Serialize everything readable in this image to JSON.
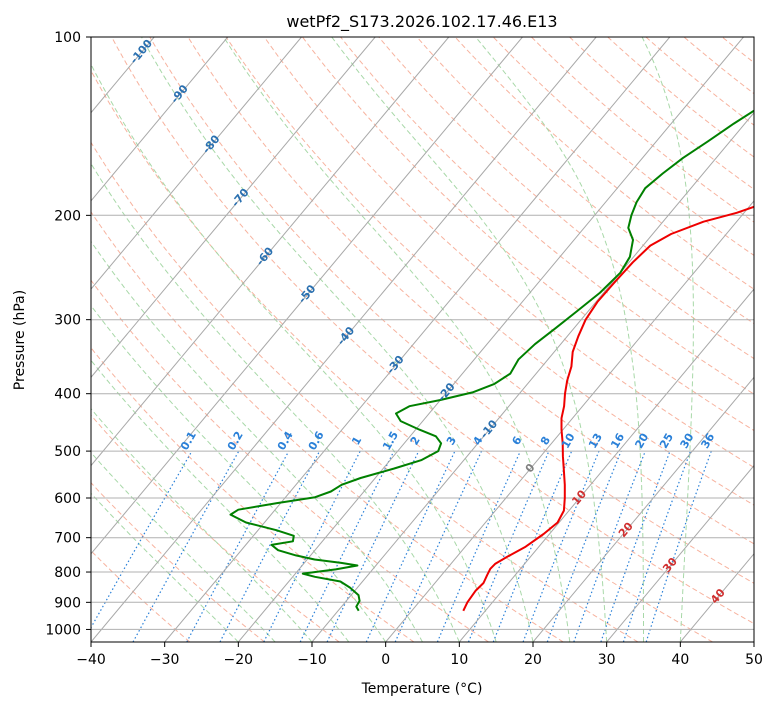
{
  "chart_data": {
    "type": "line",
    "title": "wetPf2_S173.2026.102.17.46.E13",
    "xlabel": "Temperature (°C)",
    "ylabel": "Pressure (hPa)",
    "xlim": [
      -40,
      50
    ],
    "ylim": [
      1050,
      100
    ],
    "y_scale": "log",
    "grid": true,
    "x_ticks": [
      -40,
      -30,
      -20,
      -10,
      0,
      10,
      20,
      30,
      40,
      50
    ],
    "y_ticks": [
      100,
      200,
      300,
      400,
      500,
      600,
      700,
      800,
      900,
      1000
    ],
    "skew_isotherm_labels": [
      "-100",
      "-90",
      "-80",
      "-70",
      "-60",
      "-50",
      "-40",
      "-30",
      "-20",
      "-10",
      "0",
      "10",
      "20",
      "30",
      "40"
    ],
    "mixing_ratio_labels": [
      "0.1",
      "0.2",
      "0.4",
      "0.6",
      "1",
      "1.5",
      "2",
      "3",
      "4",
      "6",
      "8",
      "10",
      "13",
      "16",
      "20",
      "25",
      "30",
      "36"
    ],
    "colors": {
      "temperature": "#ee0000",
      "dewpoint": "#008000",
      "isotherm": "#a8a8a8",
      "dry_adiabat": "#f7b39f",
      "moist_adiabat": "#a8d8a8",
      "mixing_ratio": "#2a80d8",
      "isotherm_label": "#2a70b0",
      "warm_isotherm_label": "#d03030",
      "zero_label": "#808080"
    },
    "series": [
      {
        "name": "",
        "role": "temperature",
        "points": [
          [
            7.0,
            930
          ],
          [
            6.6,
            900
          ],
          [
            6.4,
            860
          ],
          [
            6.6,
            835
          ],
          [
            6.2,
            810
          ],
          [
            5.9,
            790
          ],
          [
            6.0,
            775
          ],
          [
            6.8,
            755
          ],
          [
            8.2,
            725
          ],
          [
            9.2,
            690
          ],
          [
            9.8,
            660
          ],
          [
            9.3,
            630
          ],
          [
            8.0,
            600
          ],
          [
            6.5,
            570
          ],
          [
            4.8,
            540
          ],
          [
            3.0,
            510
          ],
          [
            1.5,
            485
          ],
          [
            -0.2,
            460
          ],
          [
            -1.5,
            440
          ],
          [
            -2.5,
            420
          ],
          [
            -3.8,
            400
          ],
          [
            -5.0,
            380
          ],
          [
            -6.0,
            360
          ],
          [
            -7.5,
            340
          ],
          [
            -8.5,
            320
          ],
          [
            -9.4,
            300
          ],
          [
            -9.8,
            280
          ],
          [
            -9.7,
            260
          ],
          [
            -9.5,
            240
          ],
          [
            -9.0,
            225
          ],
          [
            -7.5,
            215
          ],
          [
            -4.5,
            205
          ],
          [
            -1.0,
            198
          ],
          [
            2.0,
            190
          ],
          [
            4.5,
            180
          ],
          [
            6.5,
            170
          ],
          [
            8.5,
            160
          ],
          [
            10.5,
            150
          ],
          [
            13.0,
            140
          ],
          [
            15.5,
            130
          ],
          [
            18.0,
            122
          ],
          [
            20.5,
            115
          ],
          [
            23.0,
            109
          ],
          [
            25.5,
            104
          ],
          [
            28.0,
            100
          ]
        ]
      },
      {
        "name": "",
        "role": "dewpoint",
        "points": [
          [
            -7.2,
            930
          ],
          [
            -8.0,
            915
          ],
          [
            -8.2,
            895
          ],
          [
            -9.0,
            875
          ],
          [
            -11.0,
            850
          ],
          [
            -13.0,
            830
          ],
          [
            -17.0,
            815
          ],
          [
            -19.0,
            805
          ],
          [
            -15.0,
            792
          ],
          [
            -12.5,
            780
          ],
          [
            -15.0,
            772
          ],
          [
            -19.0,
            762
          ],
          [
            -22.0,
            750
          ],
          [
            -25.0,
            735
          ],
          [
            -26.5,
            720
          ],
          [
            -24.0,
            710
          ],
          [
            -24.5,
            695
          ],
          [
            -27.5,
            680
          ],
          [
            -32.5,
            660
          ],
          [
            -35.5,
            640
          ],
          [
            -35.0,
            628
          ],
          [
            -30.5,
            612
          ],
          [
            -26.0,
            598
          ],
          [
            -24.5,
            585
          ],
          [
            -23.8,
            570
          ],
          [
            -22.0,
            555
          ],
          [
            -18.5,
            535
          ],
          [
            -15.8,
            518
          ],
          [
            -14.5,
            500
          ],
          [
            -15.0,
            485
          ],
          [
            -16.5,
            472
          ],
          [
            -19.5,
            460
          ],
          [
            -23.0,
            445
          ],
          [
            -24.5,
            432
          ],
          [
            -23.5,
            420
          ],
          [
            -20.0,
            410
          ],
          [
            -16.5,
            398
          ],
          [
            -14.5,
            385
          ],
          [
            -13.5,
            370
          ],
          [
            -14.0,
            350
          ],
          [
            -13.5,
            330
          ],
          [
            -12.5,
            310
          ],
          [
            -11.5,
            290
          ],
          [
            -10.5,
            270
          ],
          [
            -10.0,
            250
          ],
          [
            -10.5,
            235
          ],
          [
            -12.0,
            220
          ],
          [
            -14.0,
            210
          ],
          [
            -15.0,
            200
          ],
          [
            -15.8,
            190
          ],
          [
            -16.2,
            180
          ],
          [
            -15.5,
            170
          ],
          [
            -14.5,
            160
          ],
          [
            -13.0,
            150
          ],
          [
            -11.5,
            140
          ],
          [
            -10.0,
            132
          ],
          [
            -8.5,
            125
          ],
          [
            -7.0,
            118
          ],
          [
            -5.5,
            112
          ],
          [
            -4.0,
            106
          ],
          [
            -2.5,
            101
          ],
          [
            -1.5,
            100
          ]
        ]
      }
    ]
  }
}
